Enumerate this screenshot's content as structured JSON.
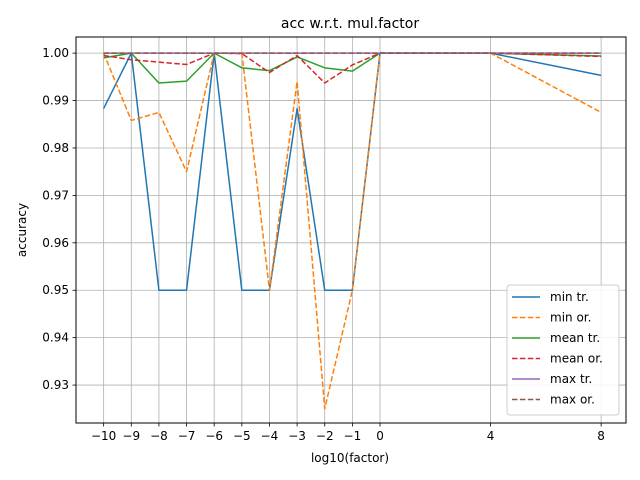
{
  "chart_data": {
    "type": "line",
    "title": "acc w.r.t. mul.factor",
    "xlabel": "log10(factor)",
    "ylabel": "accuracy",
    "xlim": [
      -11.0,
      8.9
    ],
    "ylim": [
      0.922,
      1.0034
    ],
    "x": [
      -10,
      -9,
      -8,
      -7,
      -6,
      -5,
      -4,
      -3,
      -2,
      -1,
      0,
      4,
      8
    ],
    "xticks": [
      -10,
      -9,
      -8,
      -7,
      -6,
      -5,
      -4,
      -3,
      -2,
      -1,
      0,
      4,
      8
    ],
    "xtick_labels": [
      "−10",
      "−9",
      "−8",
      "−7",
      "−6",
      "−5",
      "−4",
      "−3",
      "−2",
      "−1",
      "0",
      "4",
      "8"
    ],
    "yticks": [
      0.93,
      0.94,
      0.95,
      0.96,
      0.97,
      0.98,
      0.99,
      1.0
    ],
    "ytick_labels": [
      "0.93",
      "0.94",
      "0.95",
      "0.96",
      "0.97",
      "0.98",
      "0.99",
      "1.00"
    ],
    "grid": true,
    "legend_position": "bottom-right",
    "series": [
      {
        "name": "min tr.",
        "color": "#1f77b4",
        "dash": "solid",
        "values": [
          0.9883,
          1.0,
          0.95,
          0.95,
          1.0,
          0.95,
          0.95,
          0.9883,
          0.95,
          0.95,
          1.0,
          1.0,
          0.9953
        ]
      },
      {
        "name": "min or.",
        "color": "#ff7f0e",
        "dash": "dashed",
        "values": [
          1.0,
          0.9858,
          0.9875,
          0.975,
          1.0,
          1.0,
          0.95,
          0.994,
          0.925,
          0.95,
          1.0,
          1.0,
          0.9875
        ]
      },
      {
        "name": "mean tr.",
        "color": "#2ca02c",
        "dash": "solid",
        "values": [
          0.999,
          1.0,
          0.9937,
          0.9941,
          1.0,
          0.9969,
          0.9963,
          0.9992,
          0.9969,
          0.9962,
          1.0,
          1.0,
          0.9994
        ]
      },
      {
        "name": "mean or.",
        "color": "#d62728",
        "dash": "dashed",
        "values": [
          0.9995,
          0.9986,
          0.9981,
          0.9976,
          1.0,
          0.9999,
          0.9959,
          0.9995,
          0.9937,
          0.9975,
          1.0,
          1.0,
          0.9993
        ]
      },
      {
        "name": "max tr.",
        "color": "#9467bd",
        "dash": "solid",
        "values": [
          1.0,
          1.0,
          1.0,
          1.0,
          1.0,
          1.0,
          1.0,
          1.0,
          1.0,
          1.0,
          1.0,
          1.0,
          1.0
        ]
      },
      {
        "name": "max or.",
        "color": "#8c564b",
        "dash": "dashed",
        "values": [
          1.0,
          1.0,
          1.0,
          1.0,
          1.0,
          1.0,
          1.0,
          1.0,
          1.0,
          1.0,
          1.0,
          1.0,
          1.0
        ]
      }
    ]
  }
}
